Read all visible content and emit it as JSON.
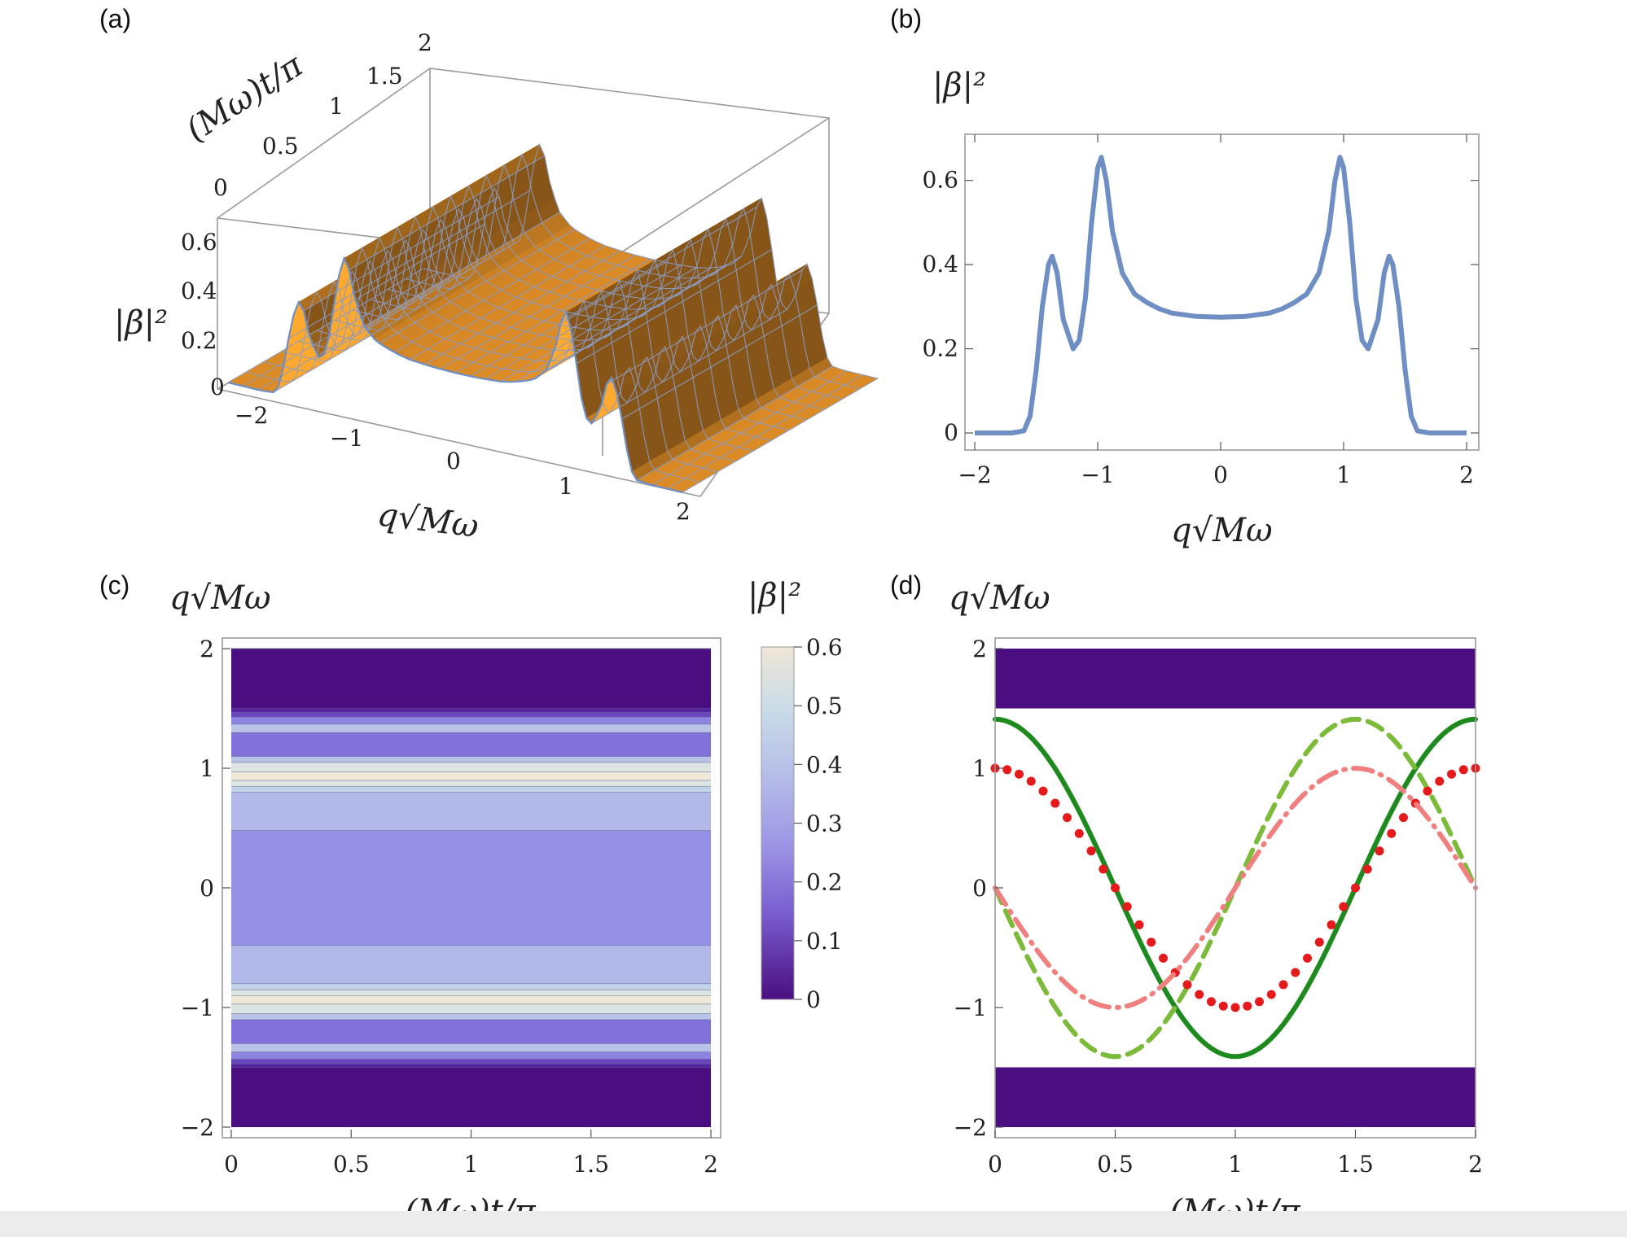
{
  "panels": {
    "a": "(a)",
    "b": "(b)",
    "c": "(c)",
    "d": "(d)"
  },
  "labels": {
    "beta_sq": "|β|²",
    "q_axis": "q√Mω",
    "t_axis": "(Mω)t/π"
  },
  "colors": {
    "surface": "#f39a2a",
    "curve": "#6e8ec4",
    "band": "#4a0e80",
    "solid_green": "#1c8a1c",
    "dashed_green": "#7cba3a",
    "dotted_red": "#e41a1c",
    "dashdot_pink": "#f08080"
  },
  "chart_data": [
    {
      "panel": "(a)",
      "type": "surface3d",
      "xlabel": "q√Mω",
      "ylabel": "(Mω)t/π",
      "zlabel": "|β|²",
      "x_ticks": [
        "−2",
        "−1",
        "0",
        "1",
        "2"
      ],
      "y_ticks": [
        "0",
        "0.5",
        "1",
        "1.5",
        "2"
      ],
      "z_ticks": [
        "0",
        "0.2",
        "0.4",
        "0.6"
      ],
      "xlim": [
        -2,
        2
      ],
      "ylim": [
        0,
        2
      ],
      "zlim": [
        0,
        0.7
      ]
    },
    {
      "panel": "(b)",
      "type": "line",
      "xlabel": "q√Mω",
      "ylabel": "|β|²",
      "xlim": [
        -2,
        2
      ],
      "ylim": [
        0,
        0.7
      ],
      "x_ticks": [
        "−2",
        "−1",
        "0",
        "1",
        "2"
      ],
      "y_ticks": [
        "0",
        "0.2",
        "0.4",
        "0.6"
      ],
      "x": [
        -2.0,
        -1.7,
        -1.6,
        -1.55,
        -1.5,
        -1.45,
        -1.4,
        -1.37,
        -1.33,
        -1.28,
        -1.2,
        -1.15,
        -1.1,
        -1.05,
        -1.0,
        -0.97,
        -0.93,
        -0.88,
        -0.8,
        -0.7,
        -0.6,
        -0.5,
        -0.4,
        -0.2,
        0.0,
        0.2,
        0.4,
        0.5,
        0.6,
        0.7,
        0.8,
        0.88,
        0.93,
        0.97,
        1.0,
        1.05,
        1.1,
        1.15,
        1.2,
        1.28,
        1.33,
        1.37,
        1.4,
        1.45,
        1.5,
        1.55,
        1.6,
        1.7,
        2.0
      ],
      "y": [
        0.0,
        0.0,
        0.005,
        0.04,
        0.15,
        0.3,
        0.4,
        0.42,
        0.38,
        0.27,
        0.2,
        0.22,
        0.32,
        0.5,
        0.63,
        0.655,
        0.6,
        0.48,
        0.38,
        0.33,
        0.31,
        0.295,
        0.285,
        0.277,
        0.275,
        0.277,
        0.285,
        0.295,
        0.31,
        0.33,
        0.38,
        0.48,
        0.6,
        0.655,
        0.63,
        0.5,
        0.32,
        0.22,
        0.2,
        0.27,
        0.38,
        0.42,
        0.4,
        0.3,
        0.15,
        0.04,
        0.005,
        0.0,
        0.0
      ]
    },
    {
      "panel": "(c)",
      "type": "heatmap",
      "xlabel": "(Mω)t/π",
      "ylabel": "q√Mω",
      "colorbar_label": "|β|²",
      "xlim": [
        0,
        2
      ],
      "ylim": [
        -2,
        2
      ],
      "x_ticks": [
        "0",
        "0.5",
        "1",
        "1.5",
        "2"
      ],
      "y_ticks": [
        "−2",
        "−1",
        "0",
        "1",
        "2"
      ],
      "colorbar_ticks": [
        "0",
        "0.1",
        "0.2",
        "0.3",
        "0.4",
        "0.5",
        "0.6"
      ],
      "colorbar_range": [
        0,
        0.6
      ],
      "bands": [
        {
          "q": [
            -2.0,
            -1.5
          ],
          "value": 0.0
        },
        {
          "q": [
            -1.5,
            -1.47
          ],
          "value": 0.08
        },
        {
          "q": [
            -1.47,
            -1.43
          ],
          "value": 0.15
        },
        {
          "q": [
            -1.43,
            -1.37
          ],
          "value": 0.25
        },
        {
          "q": [
            -1.37,
            -1.3
          ],
          "value": 0.35
        },
        {
          "q": [
            -1.3,
            -1.1
          ],
          "value": 0.22
        },
        {
          "q": [
            -1.1,
            -1.05
          ],
          "value": 0.35
        },
        {
          "q": [
            -1.05,
            -0.97
          ],
          "value": 0.5
        },
        {
          "q": [
            -0.97,
            -0.9
          ],
          "value": 0.6
        },
        {
          "q": [
            -0.9,
            -0.85
          ],
          "value": 0.5
        },
        {
          "q": [
            -0.85,
            -0.8
          ],
          "value": 0.4
        },
        {
          "q": [
            -0.8,
            -0.48
          ],
          "value": 0.32
        },
        {
          "q": [
            -0.48,
            0.48
          ],
          "value": 0.27
        },
        {
          "q": [
            0.48,
            0.8
          ],
          "value": 0.32
        },
        {
          "q": [
            0.8,
            0.85
          ],
          "value": 0.4
        },
        {
          "q": [
            0.85,
            0.9
          ],
          "value": 0.5
        },
        {
          "q": [
            0.9,
            0.97
          ],
          "value": 0.6
        },
        {
          "q": [
            0.97,
            1.05
          ],
          "value": 0.5
        },
        {
          "q": [
            1.05,
            1.1
          ],
          "value": 0.35
        },
        {
          "q": [
            1.1,
            1.3
          ],
          "value": 0.22
        },
        {
          "q": [
            1.3,
            1.37
          ],
          "value": 0.35
        },
        {
          "q": [
            1.37,
            1.43
          ],
          "value": 0.25
        },
        {
          "q": [
            1.43,
            1.47
          ],
          "value": 0.15
        },
        {
          "q": [
            1.47,
            1.5
          ],
          "value": 0.08
        },
        {
          "q": [
            1.5,
            2.0
          ],
          "value": 0.0
        }
      ]
    },
    {
      "panel": "(d)",
      "type": "line",
      "xlabel": "(Mω)t/π",
      "ylabel": "q√Mω",
      "xlim": [
        0,
        2
      ],
      "ylim": [
        -2,
        2
      ],
      "x_ticks": [
        "0",
        "0.5",
        "1",
        "1.5",
        "2"
      ],
      "y_ticks": [
        "−2",
        "−1",
        "0",
        "1",
        "2"
      ],
      "bands": [
        {
          "q": [
            1.5,
            2.0
          ]
        },
        {
          "q": [
            -2.0,
            -1.5
          ]
        }
      ],
      "series": [
        {
          "style": "solid",
          "color": "#1c8a1c",
          "amplitude": 1.41,
          "phase": "cos"
        },
        {
          "style": "dashed",
          "color": "#7cba3a",
          "amplitude": 1.41,
          "phase": "-sin"
        },
        {
          "style": "dotted",
          "color": "#e41a1c",
          "amplitude": 1.0,
          "phase": "cos"
        },
        {
          "style": "dashdot",
          "color": "#f08080",
          "amplitude": 1.0,
          "phase": "-sin"
        }
      ]
    }
  ]
}
